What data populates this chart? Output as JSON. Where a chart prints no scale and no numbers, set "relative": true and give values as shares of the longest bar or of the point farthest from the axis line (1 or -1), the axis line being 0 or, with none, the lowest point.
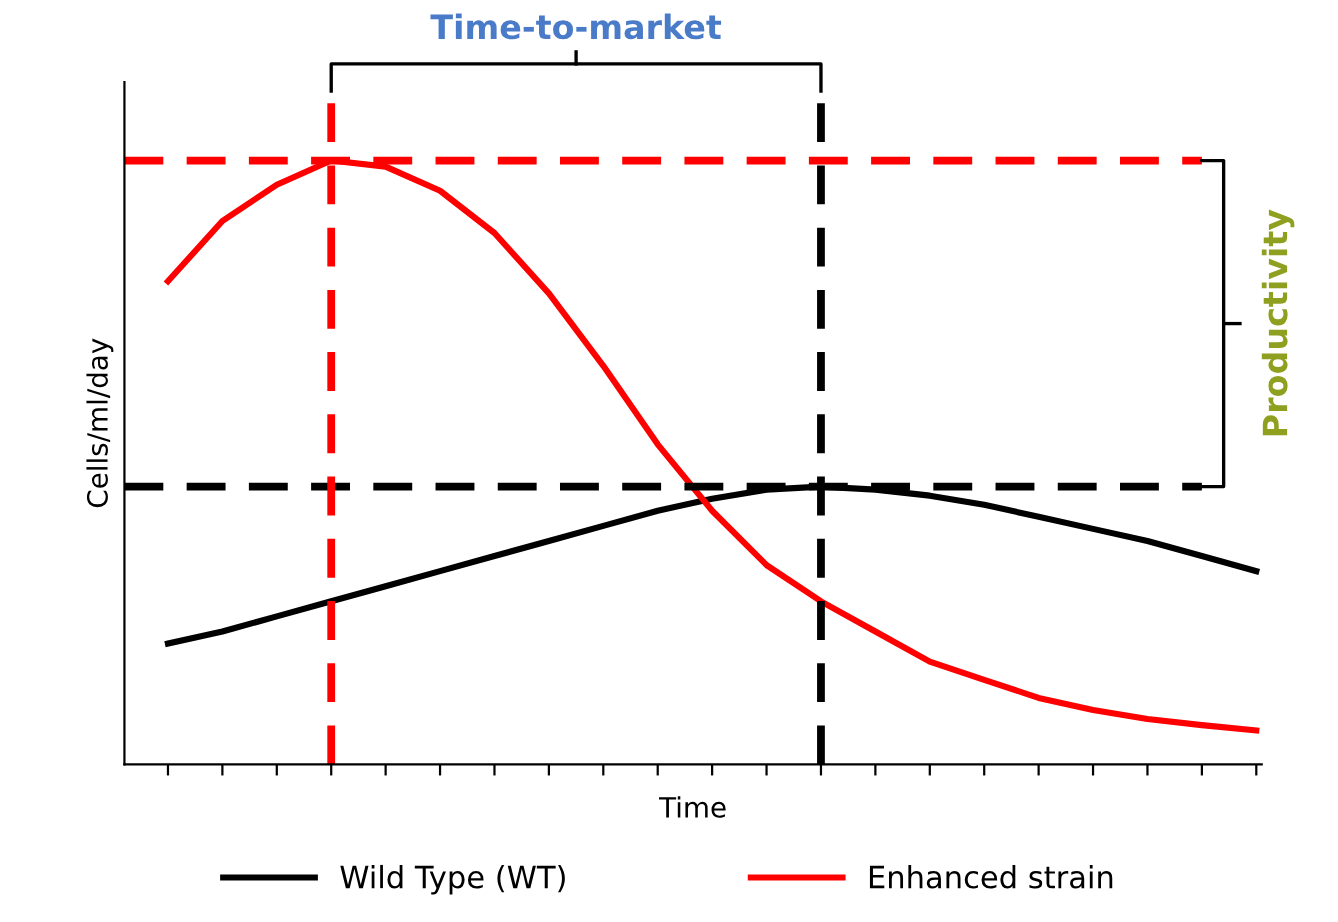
{
  "chart_data": {
    "type": "line",
    "relative": true,
    "xlabel": "Time",
    "ylabel": "Cells/ml/day",
    "categories": [
      null,
      null,
      null,
      null,
      null,
      null,
      null,
      null,
      null,
      null,
      null,
      null,
      null,
      null,
      null,
      null,
      null,
      null,
      null,
      null,
      null
    ],
    "series": [
      {
        "name": "Wild Type (WT)",
        "color": "#000000",
        "values": [
          0.2,
          0.22,
          0.245,
          0.27,
          0.295,
          0.32,
          0.345,
          0.37,
          0.395,
          0.42,
          0.44,
          0.455,
          0.46,
          0.455,
          0.445,
          0.43,
          0.41,
          0.39,
          0.37,
          0.345,
          0.32
        ]
      },
      {
        "name": "Enhanced strain",
        "color": "#ff0000",
        "values": [
          0.8,
          0.9,
          0.96,
          1.0,
          0.99,
          0.95,
          0.88,
          0.78,
          0.66,
          0.53,
          0.42,
          0.33,
          0.27,
          0.22,
          0.17,
          0.14,
          0.11,
          0.09,
          0.075,
          0.065,
          0.056
        ]
      }
    ],
    "ref_lines": [
      {
        "axis": "y",
        "value": 1.0,
        "color": "#ff0000",
        "line_style": "dashed"
      },
      {
        "axis": "y",
        "value": 0.46,
        "color": "#000000",
        "line_style": "dashed"
      }
    ],
    "annotations": [
      "Time-to-market",
      "Productivity"
    ],
    "legend": "bottom",
    "grid": false,
    "marker": "none",
    "line_style": "solid"
  }
}
